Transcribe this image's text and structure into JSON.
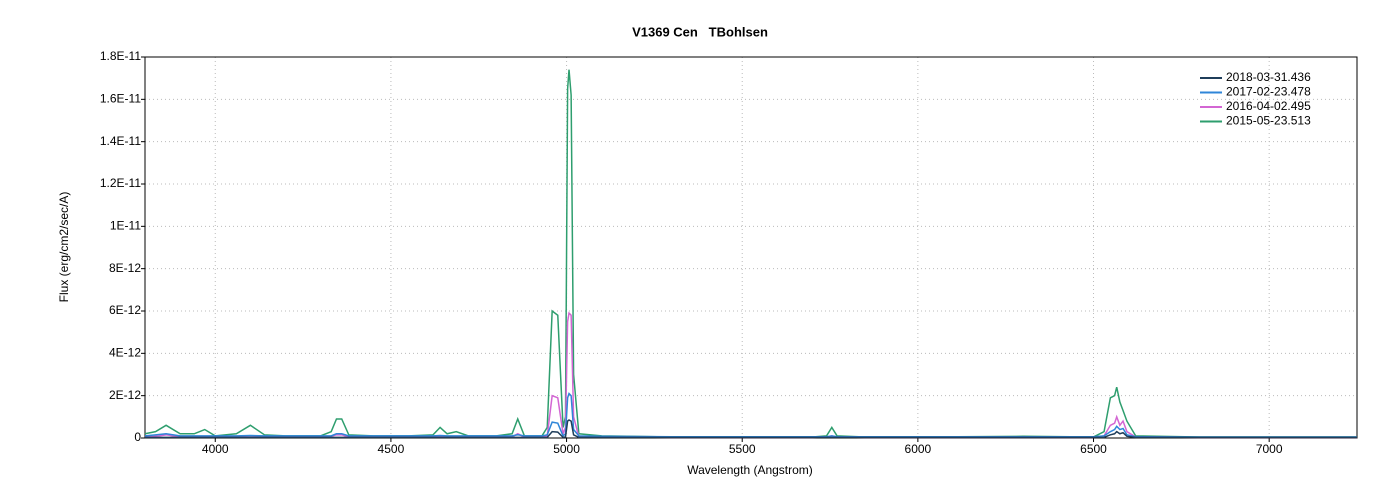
{
  "chart_data": {
    "type": "line",
    "title": "V1369 Cen   TBohlsen",
    "x_label": "Wavelength (Angstrom)",
    "y_label": "Flux (erg/cm2/sec/A)",
    "xlim": [
      3800,
      7250
    ],
    "xticks": [
      4000,
      4500,
      5000,
      5500,
      6000,
      6500,
      7000
    ],
    "ylim": [
      0,
      1.8e-11
    ],
    "yticks": [
      0,
      {
        "value": 2e-12,
        "label": "2E-12"
      },
      {
        "value": 4e-12,
        "label": "4E-12"
      },
      {
        "value": 6e-12,
        "label": "6E-12"
      },
      {
        "value": 8e-12,
        "label": "8E-12"
      },
      {
        "value": 1e-11,
        "label": "1E-11"
      },
      {
        "value": 1.2e-11,
        "label": "1.2E-11"
      },
      {
        "value": 1.4e-11,
        "label": "1.4E-11"
      },
      {
        "value": 1.6e-11,
        "label": "1.6E-11"
      },
      {
        "value": 1.8e-11,
        "label": "1.8E-11"
      }
    ],
    "grid": true,
    "legend": "top-right",
    "x": [
      3800,
      3830,
      3860,
      3900,
      3940,
      3970,
      4000,
      4060,
      4100,
      4140,
      4200,
      4300,
      4330,
      4345,
      4360,
      4380,
      4450,
      4550,
      4620,
      4640,
      4660,
      4686,
      4720,
      4800,
      4845,
      4861,
      4880,
      4930,
      4945,
      4959,
      4975,
      4990,
      4997,
      5003,
      5007,
      5013,
      5020,
      5035,
      5100,
      5300,
      5500,
      5700,
      5740,
      5755,
      5770,
      5850,
      6000,
      6300,
      6500,
      6530,
      6548,
      6560,
      6566,
      6575,
      6584,
      6595,
      6620,
      6800,
      7000,
      7250
    ],
    "series": [
      {
        "name": "2018-03-31.436",
        "color": "#1f3d5a",
        "values": [
          3e-14,
          3e-14,
          3e-14,
          3e-14,
          3e-14,
          3e-14,
          3e-14,
          3e-14,
          3e-14,
          3e-14,
          3e-14,
          3e-14,
          3e-14,
          3e-14,
          3e-14,
          3e-14,
          3e-14,
          3e-14,
          3e-14,
          3e-14,
          3e-14,
          3e-14,
          3e-14,
          3e-14,
          3e-14,
          3e-14,
          3e-14,
          3e-14,
          3e-14,
          3e-13,
          2.8e-13,
          3e-14,
          5e-14,
          8e-13,
          8.5e-13,
          8e-13,
          1.5e-13,
          3e-14,
          3e-14,
          3e-14,
          3e-14,
          3e-14,
          3e-14,
          3e-14,
          3e-14,
          3e-14,
          3e-14,
          3e-14,
          3e-14,
          3e-14,
          1.5e-13,
          2e-13,
          3e-13,
          2e-13,
          2.5e-13,
          8e-14,
          3e-14,
          3e-14,
          3e-14,
          3e-14
        ]
      },
      {
        "name": "2017-02-23.478",
        "color": "#2f86d8",
        "values": [
          1e-13,
          1.5e-13,
          2e-13,
          1e-13,
          1e-13,
          1e-13,
          1e-13,
          1e-13,
          1.2e-13,
          1e-13,
          1e-13,
          1e-13,
          1e-13,
          2e-13,
          2e-13,
          1e-13,
          1e-13,
          1e-13,
          1e-13,
          1.2e-13,
          1e-13,
          1e-13,
          1e-13,
          1e-13,
          1e-13,
          1.5e-13,
          1e-13,
          1e-13,
          1.5e-13,
          7.5e-13,
          7e-13,
          1e-13,
          2e-13,
          1.9e-12,
          2.1e-12,
          2e-12,
          4e-13,
          1e-13,
          8e-14,
          6e-14,
          6e-14,
          6e-14,
          6e-14,
          1e-13,
          6e-14,
          6e-14,
          6e-14,
          6e-14,
          6e-14,
          1e-13,
          3e-13,
          4e-13,
          5.5e-13,
          4e-13,
          4.5e-13,
          1.5e-13,
          6e-14,
          5e-14,
          5e-14,
          5e-14
        ]
      },
      {
        "name": "2016-04-02.495",
        "color": "#d366d3",
        "values": [
          5e-14,
          8e-14,
          1.5e-13,
          5e-14,
          5e-14,
          8e-14,
          5e-14,
          5e-14,
          1e-13,
          5e-14,
          5e-14,
          5e-14,
          8e-14,
          1.5e-13,
          1.5e-13,
          5e-14,
          5e-14,
          5e-14,
          5e-14,
          8e-14,
          5e-14,
          5e-14,
          5e-14,
          5e-14,
          5e-14,
          2e-13,
          5e-14,
          5e-14,
          1e-13,
          2e-12,
          1.9e-12,
          2e-13,
          5e-13,
          5.5e-12,
          5.9e-12,
          5.8e-12,
          1e-12,
          5e-14,
          5e-14,
          3e-14,
          3e-14,
          3e-14,
          5e-14,
          1e-13,
          5e-14,
          3e-14,
          3e-14,
          3e-14,
          3e-14,
          1e-13,
          6e-13,
          7e-13,
          1e-12,
          6e-13,
          8e-13,
          3e-13,
          5e-14,
          3e-14,
          3e-14,
          3e-14
        ]
      },
      {
        "name": "2015-05-23.513",
        "color": "#2e9e6e",
        "values": [
          2e-13,
          3e-13,
          6e-13,
          2e-13,
          2e-13,
          4e-13,
          1e-13,
          2e-13,
          6e-13,
          1.5e-13,
          1e-13,
          1e-13,
          3e-13,
          9e-13,
          9e-13,
          1.5e-13,
          1e-13,
          1e-13,
          1.5e-13,
          5e-13,
          2e-13,
          3e-13,
          1e-13,
          1e-13,
          2e-13,
          9e-13,
          1e-13,
          1e-13,
          5e-13,
          6e-12,
          5.8e-12,
          5e-13,
          1e-12,
          1.65e-11,
          1.74e-11,
          1.62e-11,
          3e-12,
          2e-13,
          1e-13,
          5e-14,
          5e-14,
          5e-14,
          1e-13,
          5e-13,
          1e-13,
          5e-14,
          5e-14,
          8e-14,
          5e-14,
          3e-13,
          1.9e-12,
          2e-12,
          2.4e-12,
          1.7e-12,
          1.3e-12,
          8e-13,
          1e-13,
          5e-14,
          5e-14,
          5e-14
        ]
      }
    ]
  }
}
